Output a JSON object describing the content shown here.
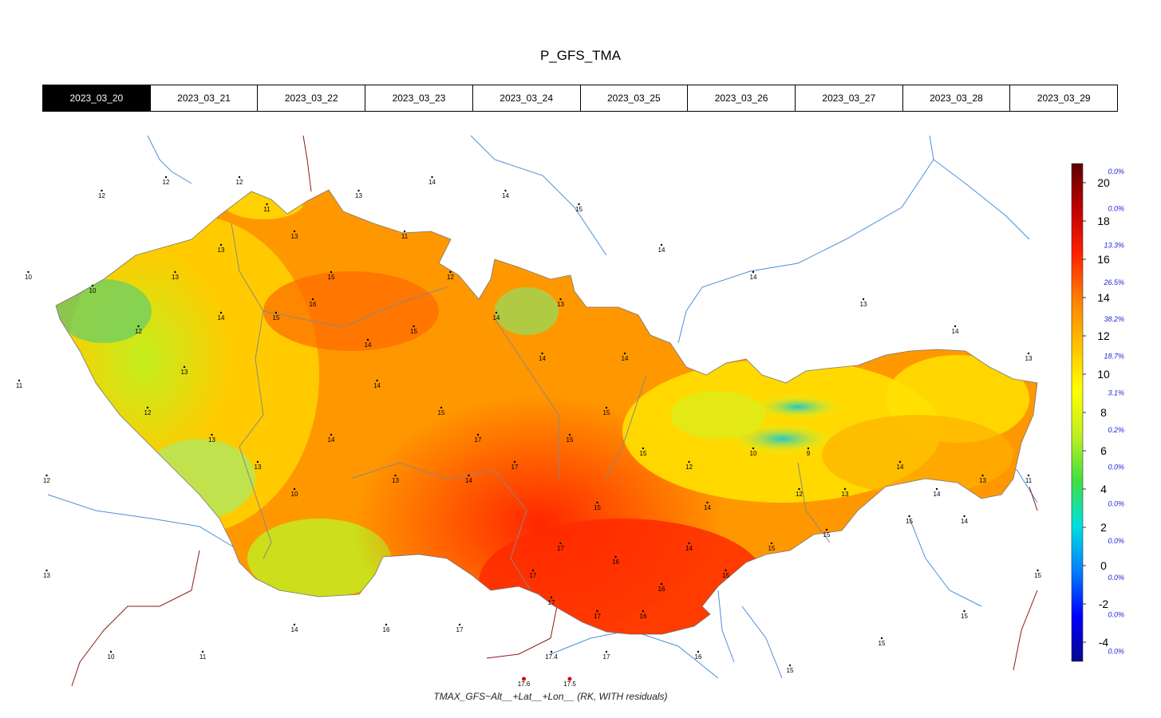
{
  "title": "P_GFS_TMA",
  "tabs": [
    "2023_03_20",
    "2023_03_21",
    "2023_03_22",
    "2023_03_23",
    "2023_03_24",
    "2023_03_25",
    "2023_03_26",
    "2023_03_27",
    "2023_03_28",
    "2023_03_29"
  ],
  "active_tab": 0,
  "caption": "TMAX_GFS~Alt__+Lat__+Lon__ (RK, WITH residuals)",
  "colors": {
    "scale": [
      "#08088c",
      "#0000ff",
      "#0080ff",
      "#00e0e0",
      "#40e040",
      "#c0f020",
      "#ffff00",
      "#ffc000",
      "#ff8000",
      "#ff2000",
      "#c00000",
      "#600000"
    ],
    "river": "#4a90d9",
    "border": "#8b1a1a",
    "region": "#888888"
  },
  "legend": {
    "ticks": [
      "20",
      "18",
      "16",
      "14",
      "12",
      "10",
      "8",
      "6",
      "4",
      "2",
      "0",
      "-2",
      "-4"
    ],
    "percents": [
      "0.0%",
      "0.0%",
      "13.3%",
      "26.5%",
      "38.2%",
      "18.7%",
      "3.1%",
      "0.2%",
      "0.0%",
      "0.0%",
      "0.0%",
      "0.0%",
      "0.0%",
      "0.0%"
    ],
    "min": -5,
    "max": 21
  },
  "stations_inside": [
    {
      "lon": 12.4,
      "lat": 50.3,
      "v": "10"
    },
    {
      "lon": 12.9,
      "lat": 50.0,
      "v": "12"
    },
    {
      "lon": 13.3,
      "lat": 50.4,
      "v": "13"
    },
    {
      "lon": 13.8,
      "lat": 50.6,
      "v": "13"
    },
    {
      "lon": 14.3,
      "lat": 50.9,
      "v": "11"
    },
    {
      "lon": 14.6,
      "lat": 50.7,
      "v": "13"
    },
    {
      "lon": 15.0,
      "lat": 50.4,
      "v": "15"
    },
    {
      "lon": 14.4,
      "lat": 50.1,
      "v": "15"
    },
    {
      "lon": 13.8,
      "lat": 50.1,
      "v": "14"
    },
    {
      "lon": 13.4,
      "lat": 49.7,
      "v": "13"
    },
    {
      "lon": 13.0,
      "lat": 49.4,
      "v": "12"
    },
    {
      "lon": 13.7,
      "lat": 49.2,
      "v": "13"
    },
    {
      "lon": 14.2,
      "lat": 49.0,
      "v": "13"
    },
    {
      "lon": 14.6,
      "lat": 48.8,
      "v": "10"
    },
    {
      "lon": 15.0,
      "lat": 49.2,
      "v": "14"
    },
    {
      "lon": 15.5,
      "lat": 49.6,
      "v": "14"
    },
    {
      "lon": 15.9,
      "lat": 50.0,
      "v": "15"
    },
    {
      "lon": 16.3,
      "lat": 50.4,
      "v": "12"
    },
    {
      "lon": 15.8,
      "lat": 50.7,
      "v": "11"
    },
    {
      "lon": 16.8,
      "lat": 50.1,
      "v": "14"
    },
    {
      "lon": 17.3,
      "lat": 49.8,
      "v": "14"
    },
    {
      "lon": 17.5,
      "lat": 50.2,
      "v": "13"
    },
    {
      "lon": 18.2,
      "lat": 49.8,
      "v": "14"
    },
    {
      "lon": 16.6,
      "lat": 49.2,
      "v": "17"
    },
    {
      "lon": 16.2,
      "lat": 49.4,
      "v": "15"
    },
    {
      "lon": 17.0,
      "lat": 49.0,
      "v": "17"
    },
    {
      "lon": 17.6,
      "lat": 49.2,
      "v": "15"
    },
    {
      "lon": 18.0,
      "lat": 49.4,
      "v": "15"
    },
    {
      "lon": 18.4,
      "lat": 49.1,
      "v": "15"
    },
    {
      "lon": 17.9,
      "lat": 48.7,
      "v": "15"
    },
    {
      "lon": 17.2,
      "lat": 48.2,
      "v": "17"
    },
    {
      "lon": 17.5,
      "lat": 48.4,
      "v": "17"
    },
    {
      "lon": 18.1,
      "lat": 48.3,
      "v": "16"
    },
    {
      "lon": 18.6,
      "lat": 48.1,
      "v": "16"
    },
    {
      "lon": 19.1,
      "lat": 48.7,
      "v": "14"
    },
    {
      "lon": 19.6,
      "lat": 49.1,
      "v": "10"
    },
    {
      "lon": 20.2,
      "lat": 49.1,
      "v": "9"
    },
    {
      "lon": 20.6,
      "lat": 48.8,
      "v": "13"
    },
    {
      "lon": 21.2,
      "lat": 49.0,
      "v": "14"
    },
    {
      "lon": 21.6,
      "lat": 48.8,
      "v": "14"
    },
    {
      "lon": 22.1,
      "lat": 48.9,
      "v": "13"
    },
    {
      "lon": 21.9,
      "lat": 48.6,
      "v": "14"
    },
    {
      "lon": 21.3,
      "lat": 48.6,
      "v": "15"
    },
    {
      "lon": 20.4,
      "lat": 48.5,
      "v": "15"
    },
    {
      "lon": 19.8,
      "lat": 48.4,
      "v": "15"
    },
    {
      "lon": 19.3,
      "lat": 48.2,
      "v": "15"
    },
    {
      "lon": 18.9,
      "lat": 48.4,
      "v": "14"
    },
    {
      "lon": 20.1,
      "lat": 48.8,
      "v": "12"
    },
    {
      "lon": 18.9,
      "lat": 49.0,
      "v": "12"
    },
    {
      "lon": 17.4,
      "lat": 48.0,
      "v": "17"
    },
    {
      "lon": 17.9,
      "lat": 47.9,
      "v": "17"
    },
    {
      "lon": 18.4,
      "lat": 47.9,
      "v": "16"
    },
    {
      "lon": 16.5,
      "lat": 48.9,
      "v": "14"
    },
    {
      "lon": 15.7,
      "lat": 48.9,
      "v": "13"
    },
    {
      "lon": 15.4,
      "lat": 49.9,
      "v": "14"
    },
    {
      "lon": 14.8,
      "lat": 50.2,
      "v": "16"
    }
  ],
  "stations_outside": [
    {
      "lon": 12.5,
      "lat": 51.0,
      "v": "12"
    },
    {
      "lon": 13.2,
      "lat": 51.1,
      "v": "12"
    },
    {
      "lon": 14.0,
      "lat": 51.1,
      "v": "12"
    },
    {
      "lon": 15.3,
      "lat": 51.0,
      "v": "13"
    },
    {
      "lon": 16.1,
      "lat": 51.1,
      "v": "14"
    },
    {
      "lon": 16.9,
      "lat": 51.0,
      "v": "14"
    },
    {
      "lon": 17.7,
      "lat": 50.9,
      "v": "15"
    },
    {
      "lon": 18.6,
      "lat": 50.6,
      "v": "14"
    },
    {
      "lon": 19.6,
      "lat": 50.4,
      "v": "14"
    },
    {
      "lon": 20.8,
      "lat": 50.2,
      "v": "13"
    },
    {
      "lon": 21.8,
      "lat": 50.0,
      "v": "14"
    },
    {
      "lon": 22.6,
      "lat": 49.8,
      "v": "13"
    },
    {
      "lon": 22.6,
      "lat": 48.9,
      "v": "11"
    },
    {
      "lon": 22.7,
      "lat": 48.2,
      "v": "15"
    },
    {
      "lon": 21.9,
      "lat": 47.9,
      "v": "15"
    },
    {
      "lon": 21.0,
      "lat": 47.7,
      "v": "15"
    },
    {
      "lon": 20.0,
      "lat": 47.5,
      "v": "15"
    },
    {
      "lon": 19.0,
      "lat": 47.6,
      "v": "16"
    },
    {
      "lon": 18.0,
      "lat": 47.6,
      "v": "17"
    },
    {
      "lon": 17.4,
      "lat": 47.6,
      "v": "17.4"
    },
    {
      "lon": 16.4,
      "lat": 47.8,
      "v": "17"
    },
    {
      "lon": 15.6,
      "lat": 47.8,
      "v": "16"
    },
    {
      "lon": 14.6,
      "lat": 47.8,
      "v": "14"
    },
    {
      "lon": 13.6,
      "lat": 47.6,
      "v": "11"
    },
    {
      "lon": 12.6,
      "lat": 47.6,
      "v": "10"
    },
    {
      "lon": 11.9,
      "lat": 48.2,
      "v": "13"
    },
    {
      "lon": 11.9,
      "lat": 48.9,
      "v": "12"
    },
    {
      "lon": 11.6,
      "lat": 49.6,
      "v": "11"
    },
    {
      "lon": 11.7,
      "lat": 50.4,
      "v": "10"
    },
    {
      "lon": 12.0,
      "lat": 47.3,
      "v": "9"
    },
    {
      "lon": 13.0,
      "lat": 47.3,
      "v": "7"
    },
    {
      "lon": 14.2,
      "lat": 47.3,
      "v": "9"
    },
    {
      "lon": 15.6,
      "lat": 47.2,
      "v": "14"
    },
    {
      "lon": 17.0,
      "lat": 47.2,
      "v": "17"
    },
    {
      "lon": 18.6,
      "lat": 47.2,
      "v": "17"
    },
    {
      "lon": 20.4,
      "lat": 47.3,
      "v": "16"
    },
    {
      "lon": 21.6,
      "lat": 47.3,
      "v": "16"
    }
  ],
  "highlight_stations": [
    {
      "lon": 17.1,
      "lat": 47.4,
      "v": "17.6"
    },
    {
      "lon": 17.6,
      "lat": 47.4,
      "v": "17.5"
    }
  ]
}
